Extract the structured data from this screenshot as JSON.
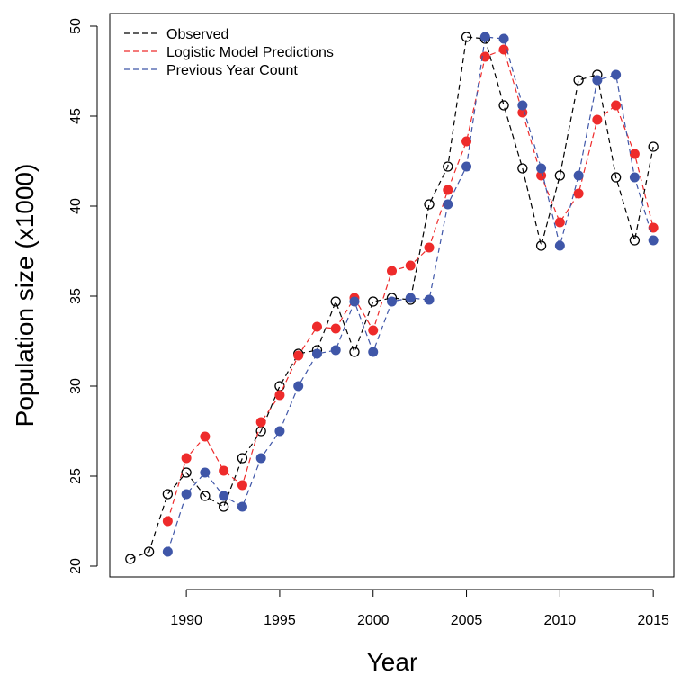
{
  "chart_data": {
    "type": "line",
    "title": "",
    "xlabel": "Year",
    "ylabel": "Population size (x1000)",
    "xlim": [
      1985.9,
      2016.1
    ],
    "ylim": [
      19.4,
      50.7
    ],
    "xticks": [
      1990,
      1995,
      2000,
      2005,
      2010,
      2015
    ],
    "yticks": [
      20,
      25,
      30,
      35,
      40,
      45,
      50
    ],
    "grid": false,
    "legend": {
      "placement": "top-left"
    },
    "series": [
      {
        "name": "Observed",
        "color": "#000000",
        "marker": "open-circle",
        "line": "dashed",
        "x": [
          1987,
          1988,
          1989,
          1990,
          1991,
          1992,
          1993,
          1994,
          1995,
          1996,
          1997,
          1998,
          1999,
          2000,
          2001,
          2002,
          2003,
          2004,
          2005,
          2006,
          2007,
          2008,
          2009,
          2010,
          2011,
          2012,
          2013,
          2014,
          2015
        ],
        "y": [
          20.4,
          20.8,
          24.0,
          25.2,
          23.9,
          23.3,
          26.0,
          27.5,
          30.0,
          31.8,
          32.0,
          34.7,
          31.9,
          34.7,
          34.9,
          34.8,
          40.1,
          42.2,
          49.4,
          49.3,
          45.6,
          42.1,
          37.8,
          41.7,
          47.0,
          47.3,
          41.6,
          38.1,
          43.3
        ]
      },
      {
        "name": "Logistic Model Predictions",
        "color": "#ee2b2b",
        "marker": "filled-circle",
        "line": "dashed",
        "x": [
          1989,
          1990,
          1991,
          1992,
          1993,
          1994,
          1995,
          1996,
          1997,
          1998,
          1999,
          2000,
          2001,
          2002,
          2003,
          2004,
          2005,
          2006,
          2007,
          2008,
          2009,
          2010,
          2011,
          2012,
          2013,
          2014,
          2015
        ],
        "y": [
          22.5,
          26.0,
          27.2,
          25.3,
          24.5,
          28.0,
          29.5,
          31.7,
          33.3,
          33.2,
          34.9,
          33.1,
          36.4,
          36.7,
          37.7,
          40.9,
          43.6,
          48.3,
          48.7,
          45.2,
          41.7,
          39.1,
          40.7,
          44.8,
          45.6,
          42.9,
          38.8
        ]
      },
      {
        "name": "Previous Year Count",
        "color": "#3f56a8",
        "marker": "filled-circle",
        "line": "dashed",
        "x": [
          1989,
          1990,
          1991,
          1992,
          1993,
          1994,
          1995,
          1996,
          1997,
          1998,
          1999,
          2000,
          2001,
          2002,
          2003,
          2004,
          2005,
          2006,
          2007,
          2008,
          2009,
          2010,
          2011,
          2012,
          2013,
          2014,
          2015
        ],
        "y": [
          20.8,
          24.0,
          25.2,
          23.9,
          23.3,
          26.0,
          27.5,
          30.0,
          31.8,
          32.0,
          34.7,
          31.9,
          34.7,
          34.9,
          34.8,
          40.1,
          42.2,
          49.4,
          49.3,
          45.6,
          42.1,
          37.8,
          41.7,
          47.0,
          47.3,
          41.6,
          38.1
        ]
      }
    ]
  }
}
